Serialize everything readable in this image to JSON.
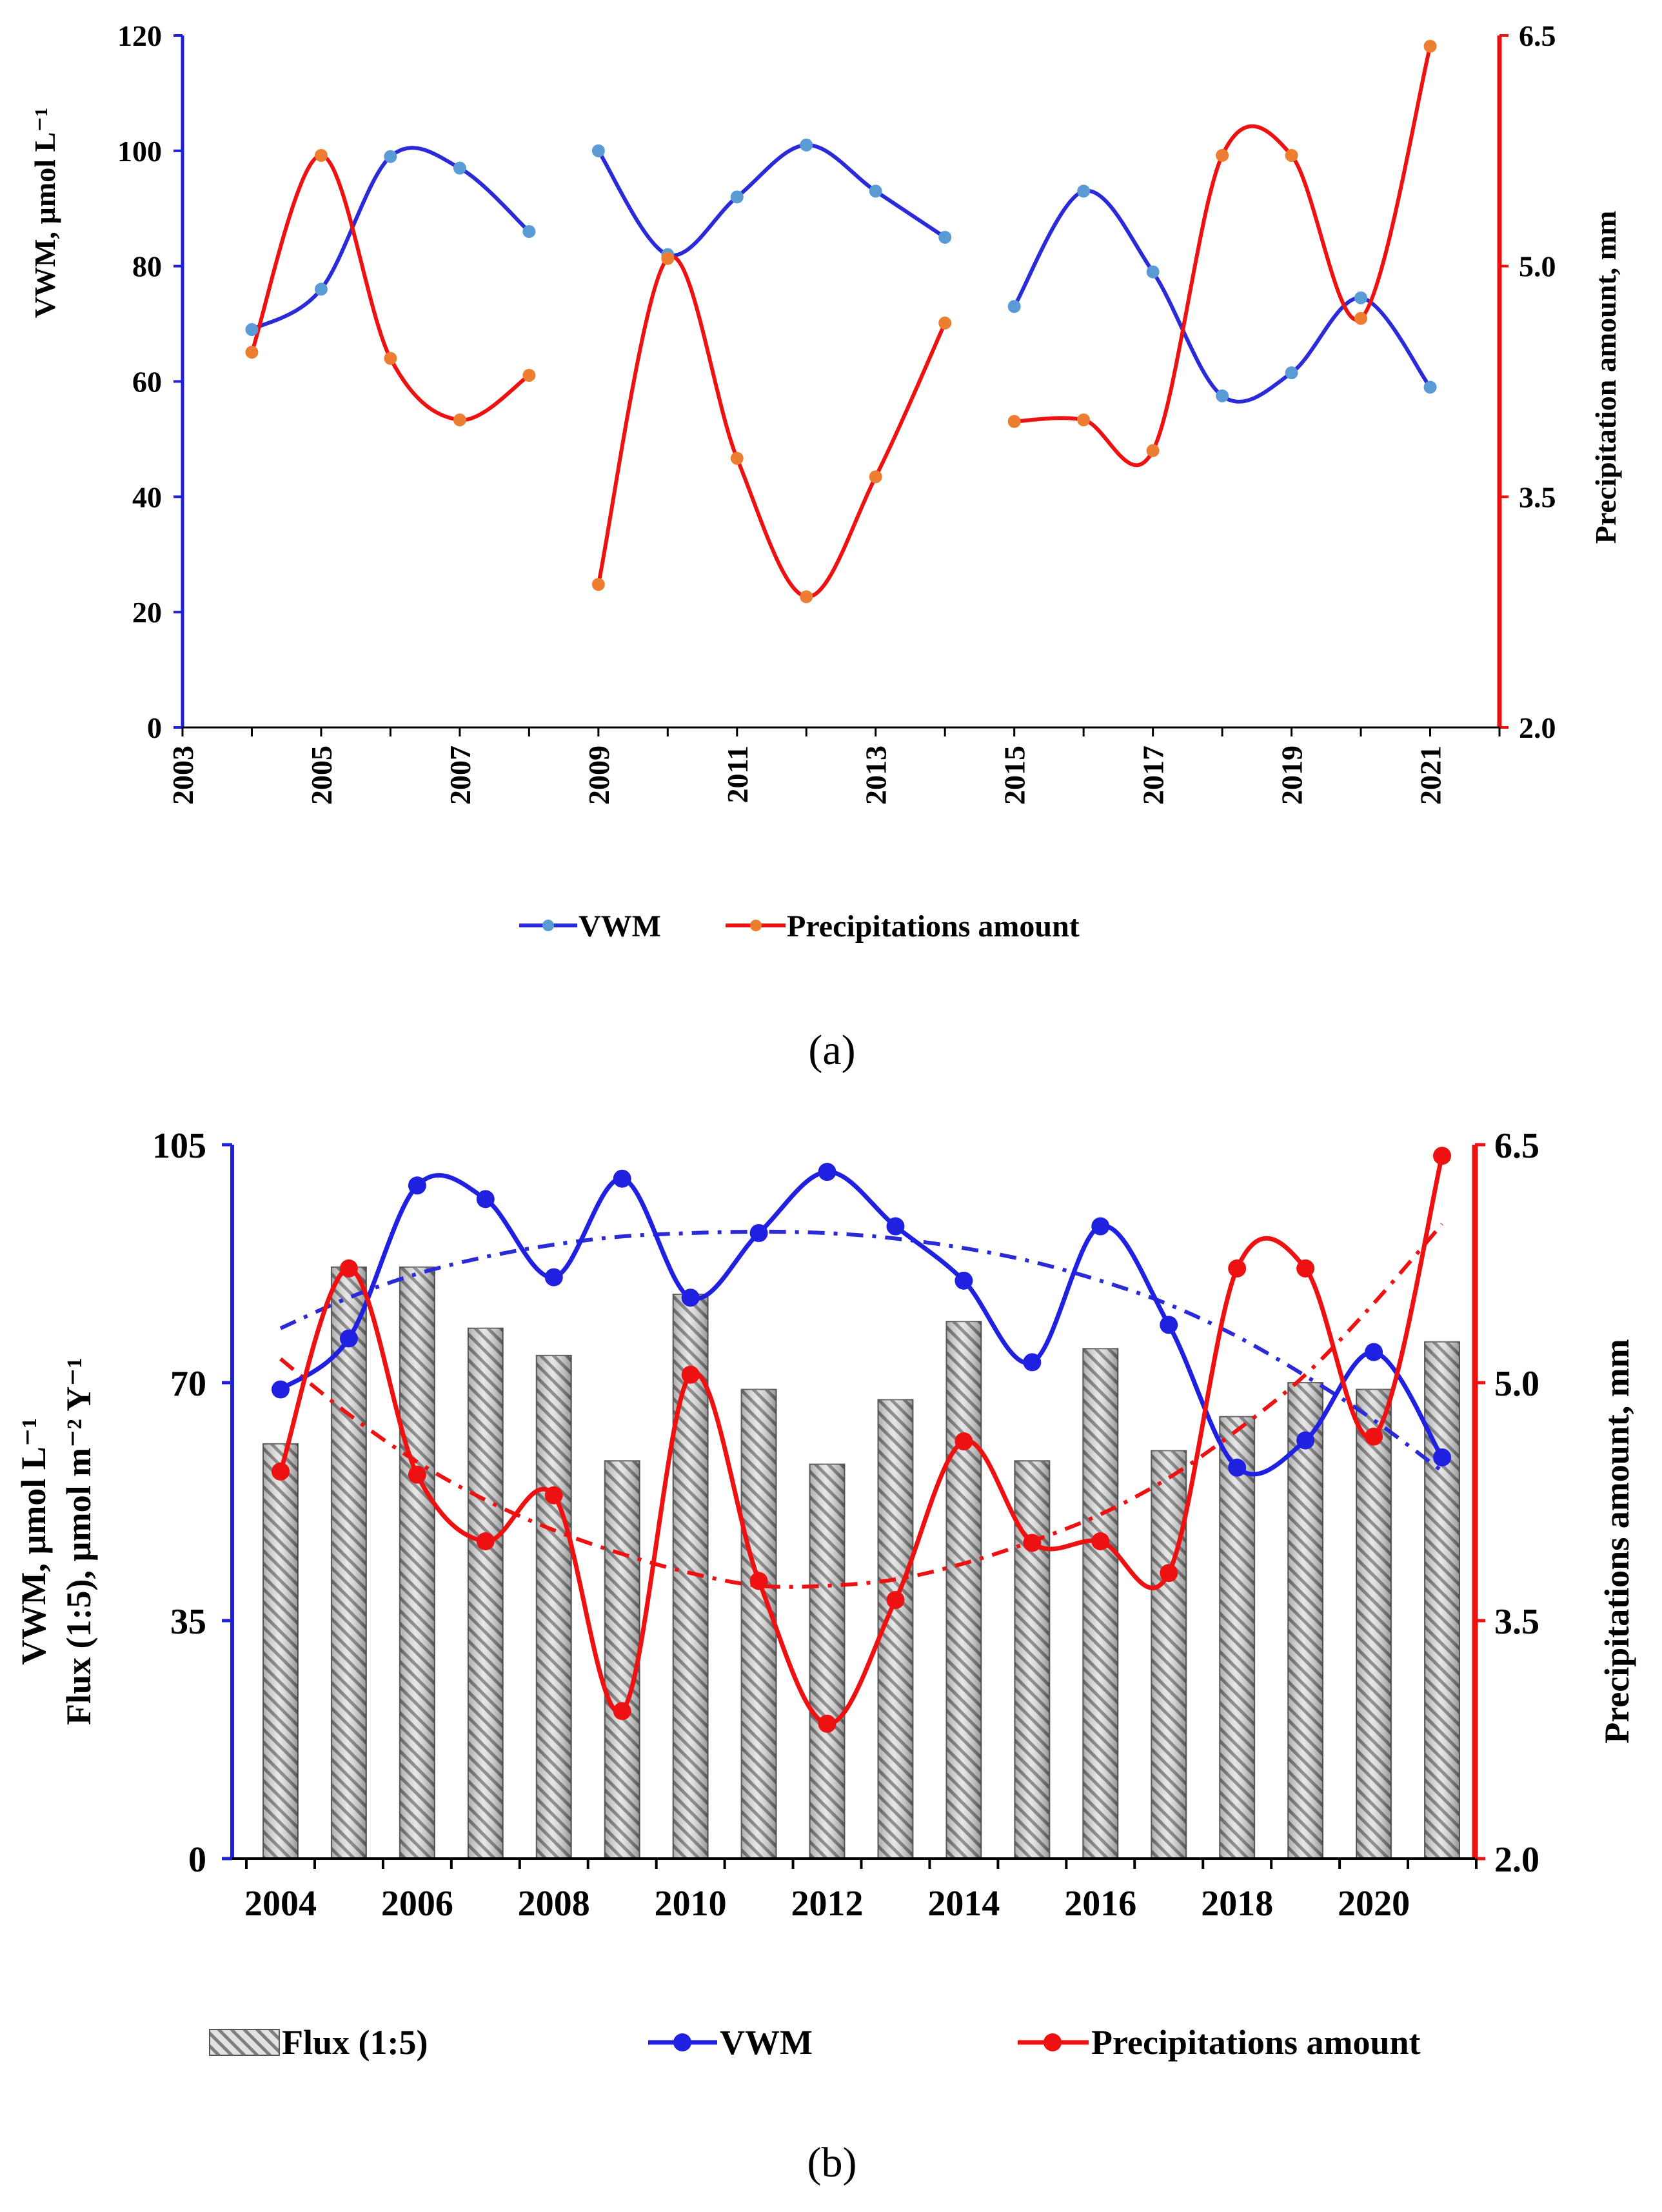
{
  "chart_data": [
    {
      "type": "line",
      "panel_label": "(a)",
      "x_axis": {
        "min": 2003,
        "max": 2022,
        "ticks": [
          2003,
          2005,
          2007,
          2009,
          2011,
          2013,
          2015,
          2017,
          2019,
          2021
        ],
        "tick_labels": [
          "2003",
          "2005",
          "2007",
          "2009",
          "2011",
          "2013",
          "2015",
          "2017",
          "2019",
          "2021"
        ]
      },
      "y_left": {
        "label": "VWM, µmol L⁻¹",
        "min": 0,
        "max": 120,
        "ticks": [
          0,
          20,
          40,
          60,
          80,
          100,
          120
        ],
        "tick_labels": [
          "0",
          "20",
          "40",
          "60",
          "80",
          "100",
          "120"
        ],
        "color": "#2020d8"
      },
      "y_right": {
        "label": "Precipitation amount, mm",
        "min": 2.0,
        "max": 6.5,
        "ticks": [
          2.0,
          3.5,
          5.0,
          6.5
        ],
        "tick_labels": [
          "2.0",
          "3.5",
          "5.0",
          "6.5"
        ],
        "color": "#ee1111"
      },
      "series": [
        {
          "name": "VWM",
          "axis": "left",
          "color": "#2a2ad8",
          "marker_color": "#5b9bd5",
          "segments": [
            {
              "x": [
                2004,
                2005,
                2006,
                2007,
                2008
              ],
              "values": [
                69,
                76,
                99,
                97,
                86
              ]
            },
            {
              "x": [
                2009,
                2010,
                2011,
                2012,
                2013,
                2014
              ],
              "values": [
                100,
                82,
                92,
                101,
                93,
                85
              ]
            },
            {
              "x": [
                2015,
                2016,
                2017,
                2018,
                2019,
                2020,
                2021
              ],
              "values": [
                73,
                93,
                79,
                57.5,
                61.5,
                74.5,
                59
              ]
            }
          ]
        },
        {
          "name": "Precipitations amount",
          "axis": "right",
          "color": "#ee1111",
          "marker_color": "#ed7d31",
          "segments": [
            {
              "x": [
                2004,
                2005,
                2006,
                2007,
                2008
              ],
              "values": [
                4.44,
                5.72,
                4.4,
                4.0,
                4.29
              ]
            },
            {
              "x": [
                2009,
                2010,
                2011,
                2012,
                2013,
                2014
              ],
              "values": [
                2.93,
                5.05,
                3.75,
                2.85,
                3.63,
                4.63
              ]
            },
            {
              "x": [
                2015,
                2016,
                2017,
                2018,
                2019,
                2020,
                2021
              ],
              "values": [
                3.99,
                4.0,
                3.8,
                5.72,
                5.72,
                4.66,
                6.43
              ]
            }
          ]
        }
      ],
      "legend": [
        "VWM",
        "Precipitations amount"
      ],
      "legend_position": "bottom"
    },
    {
      "type": "bar+line",
      "panel_label": "(b)",
      "x_axis": {
        "categories": [
          "2004",
          "2005",
          "2006",
          "2007",
          "2008",
          "2009",
          "2010",
          "2011",
          "2012",
          "2013",
          "2014",
          "2015",
          "2016",
          "2017",
          "2018",
          "2019",
          "2020",
          "2021"
        ],
        "tick_labels": [
          "2004",
          "2006",
          "2008",
          "2010",
          "2012",
          "2014",
          "2016",
          "2018",
          "2020"
        ]
      },
      "y_left": {
        "label_line1": "VWM, µmol L⁻¹",
        "label_line2": "Flux (1:5), µmol m⁻² Y⁻¹",
        "min": 0,
        "max": 105,
        "ticks": [
          0,
          35,
          70,
          105
        ],
        "tick_labels": [
          "0",
          "35",
          "70",
          "105"
        ],
        "color": "#2020d8"
      },
      "y_right": {
        "label": "Precipitations amount, mm",
        "min": 2.0,
        "max": 6.5,
        "ticks": [
          2.0,
          3.5,
          5.0,
          6.5
        ],
        "tick_labels": [
          "2.0",
          "3.5",
          "5.0",
          "6.5"
        ],
        "color": "#ee1111"
      },
      "bars": {
        "name": "Flux (1:5)",
        "axis": "left",
        "values": [
          61,
          87,
          87,
          78,
          74,
          58.5,
          83,
          69,
          58,
          67.5,
          79,
          58.5,
          75,
          60,
          65,
          70,
          69,
          76
        ]
      },
      "series": [
        {
          "name": "VWM",
          "axis": "left",
          "color": "#2020e0",
          "values": [
            69,
            76.5,
            99,
            97,
            85.5,
            100,
            82.5,
            92,
            101,
            93,
            85,
            73,
            93,
            78.5,
            57.5,
            61.5,
            74.5,
            59
          ]
        },
        {
          "name": "Precipitations amount",
          "axis": "right",
          "color": "#ee1111",
          "values": [
            4.44,
            5.72,
            4.42,
            4.0,
            4.29,
            2.93,
            5.05,
            3.75,
            2.85,
            3.63,
            4.63,
            3.99,
            4.0,
            3.8,
            5.72,
            5.72,
            4.66,
            6.43
          ]
        }
      ],
      "trendlines": [
        {
          "name": "VWM trend",
          "axis": "left",
          "color": "#2a2ad8",
          "style": "dash-dot",
          "values": [
            78,
            82.5,
            86,
            88.5,
            90.3,
            91.5,
            92,
            92.2,
            92,
            91.2,
            89.8,
            87.8,
            85,
            81.5,
            76.8,
            71,
            64.5,
            57
          ]
        },
        {
          "name": "Precipitation trend",
          "axis": "right",
          "color": "#ee1111",
          "style": "dash-dot",
          "values": [
            5.15,
            4.8,
            4.5,
            4.26,
            4.07,
            3.92,
            3.8,
            3.72,
            3.72,
            3.76,
            3.86,
            4.0,
            4.17,
            4.4,
            4.7,
            5.05,
            5.5,
            6.0
          ]
        }
      ],
      "legend": [
        "Flux (1:5)",
        "VWM",
        "Precipitations amount"
      ],
      "legend_position": "bottom"
    }
  ]
}
